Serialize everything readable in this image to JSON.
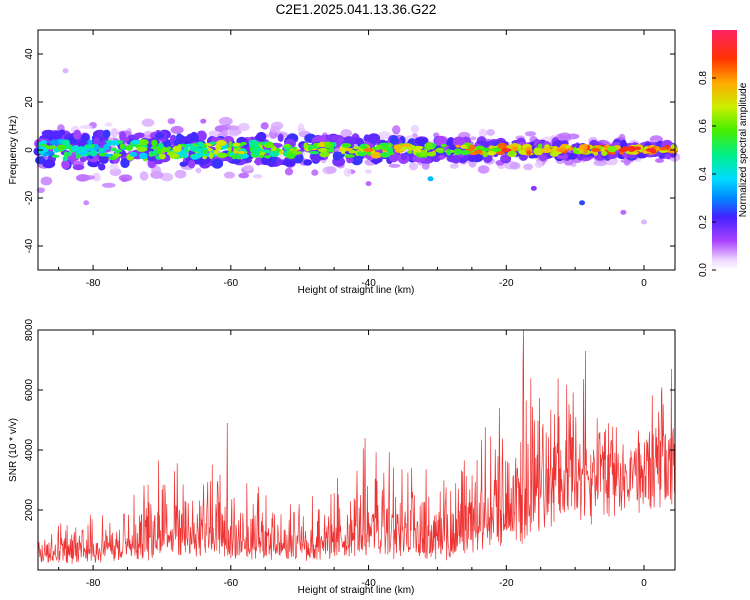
{
  "figure": {
    "title": "C2E1.2025.041.13.36.G22"
  },
  "chart_data": [
    {
      "type": "heatmap",
      "xlabel": "Height of straight line (km)",
      "ylabel": "Frequency (Hz)",
      "xlim": [
        -88,
        4.5
      ],
      "ylim": [
        -50,
        50
      ],
      "xticks": [
        -80,
        -60,
        -40,
        -20,
        0
      ],
      "xtick_labels": [
        "-80",
        "-60",
        "-40",
        "-20",
        "0"
      ],
      "yticks": [
        -40,
        -20,
        0,
        20,
        40
      ],
      "ytick_labels": [
        "-40",
        "-20",
        "0",
        "20",
        "40"
      ],
      "grid": false,
      "description_points": {
        "band_center_frequency_hz": 0,
        "band_halfwidth_start_hz": 7,
        "band_halfwidth_end_hz": 2,
        "scatter_points": [
          {
            "x": -81,
            "y": -22,
            "v": 0.08
          },
          {
            "x": -9,
            "y": -22,
            "v": 0.25
          },
          {
            "x": -16,
            "y": -16,
            "v": 0.15
          },
          {
            "x": -31,
            "y": -12,
            "v": 0.35
          },
          {
            "x": -3,
            "y": -26,
            "v": 0.1
          },
          {
            "x": 0,
            "y": -30,
            "v": 0.06
          },
          {
            "x": -84,
            "y": 33,
            "v": 0.06
          },
          {
            "x": -64,
            "y": 12,
            "v": 0.1
          },
          {
            "x": -40,
            "y": -14,
            "v": 0.1
          }
        ]
      },
      "colorbar": {
        "label": "Normalized spectral amplitude",
        "range": [
          0,
          1
        ],
        "ticks": [
          0.0,
          0.2,
          0.4,
          0.6,
          0.8
        ],
        "tick_labels": [
          "0.0",
          "0.2",
          "0.4",
          "0.6",
          "0.8"
        ]
      }
    },
    {
      "type": "line",
      "xlabel": "Height of straight line (km)",
      "ylabel": "SNR (10 * v/v)",
      "xlim": [
        -88,
        4.5
      ],
      "ylim": [
        0,
        8000
      ],
      "xticks": [
        -80,
        -60,
        -40,
        -20,
        0
      ],
      "xtick_labels": [
        "-80",
        "-60",
        "-40",
        "-20",
        "0"
      ],
      "yticks": [
        2000,
        4000,
        6000,
        8000
      ],
      "ytick_labels": [
        "2000",
        "4000",
        "6000",
        "8000"
      ],
      "grid": false,
      "color": "#ee3333",
      "envelope": {
        "x": [
          -88,
          -80,
          -75,
          -70,
          -65,
          -60,
          -55,
          -50,
          -45,
          -40,
          -35,
          -30,
          -27,
          -25,
          -22,
          -20,
          -18,
          -17,
          -15,
          -13,
          -11,
          -9,
          -7,
          -5,
          -3,
          -1,
          0,
          2,
          4.5
        ],
        "baseline": [
          350,
          500,
          600,
          800,
          900,
          700,
          650,
          600,
          700,
          800,
          700,
          600,
          800,
          1200,
          1500,
          1800,
          2200,
          1300,
          2800,
          3200,
          3400,
          3500,
          3600,
          3700,
          3800,
          4000,
          4200,
          4600,
          5100
        ],
        "amplitude": [
          900,
          1100,
          1300,
          1900,
          2100,
          2200,
          1400,
          1300,
          1900,
          2400,
          2300,
          1700,
          1800,
          2600,
          2700,
          2700,
          3000,
          5500,
          2500,
          2500,
          2600,
          2400,
          2300,
          1700,
          1400,
          1200,
          1100,
          1300,
          1400
        ]
      },
      "spikes": [
        {
          "x": -70.5,
          "y": 3650
        },
        {
          "x": -60.5,
          "y": 4900
        },
        {
          "x": -40.5,
          "y": 4400
        },
        {
          "x": -21,
          "y": 5400
        },
        {
          "x": -17.5,
          "y": 8000
        },
        {
          "x": -8.5,
          "y": 7300
        },
        {
          "x": 4,
          "y": 6700
        }
      ]
    }
  ]
}
